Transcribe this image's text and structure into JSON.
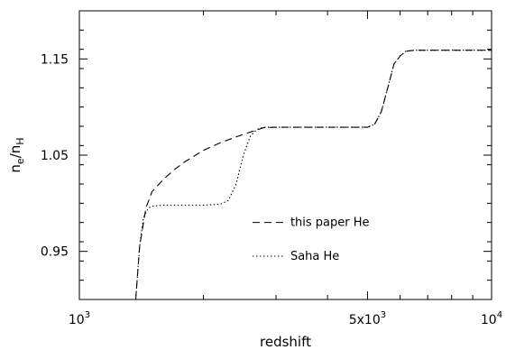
{
  "chart_data": {
    "type": "line",
    "xlabel": "redshift",
    "ylabel": {
      "base": "n",
      "sub1": "e",
      "slash": "/n",
      "sub2": "H"
    },
    "xscale": "log",
    "xlim": [
      1000,
      10000
    ],
    "ylim": [
      0.9,
      1.2
    ],
    "grid": false,
    "legend_position": "bottom-center",
    "x_ticks": [
      {
        "value": 1000,
        "base": "10",
        "exp": "3"
      },
      {
        "value": 5000,
        "base": "5x10",
        "exp": "3"
      },
      {
        "value": 10000,
        "base": "10",
        "exp": "4"
      }
    ],
    "x_minor_ticks": [
      2000,
      3000,
      4000,
      6000,
      7000,
      8000,
      9000
    ],
    "y_ticks": [
      {
        "value": 0.95,
        "label": "0.95"
      },
      {
        "value": 1.05,
        "label": "1.05"
      },
      {
        "value": 1.15,
        "label": "1.15"
      }
    ],
    "y_minor_ticks": [
      0.9,
      0.92,
      0.94,
      0.96,
      0.98,
      1.0,
      1.02,
      1.04,
      1.06,
      1.08,
      1.1,
      1.12,
      1.14,
      1.16,
      1.18,
      1.2
    ],
    "series": [
      {
        "name": "this paper He",
        "dash": "8,5",
        "x": [
          1370,
          1400,
          1450,
          1500,
          1600,
          1700,
          1800,
          2000,
          2200,
          2400,
          2600,
          2800,
          3000,
          3500,
          4000,
          4500,
          5000,
          5200,
          5400,
          5600,
          5800,
          6000,
          6200,
          6500,
          7000,
          8000,
          9000,
          10000
        ],
        "y": [
          0.9,
          0.955,
          0.995,
          1.012,
          1.025,
          1.035,
          1.043,
          1.055,
          1.063,
          1.069,
          1.074,
          1.0785,
          1.079,
          1.079,
          1.079,
          1.079,
          1.079,
          1.082,
          1.095,
          1.12,
          1.145,
          1.153,
          1.158,
          1.159,
          1.159,
          1.159,
          1.159,
          1.159
        ]
      },
      {
        "name": "Saha He",
        "dash": "1.5,2.5",
        "x": [
          1370,
          1400,
          1430,
          1470,
          1500,
          1600,
          1700,
          1800,
          2000,
          2200,
          2300,
          2400,
          2500,
          2600,
          2700,
          2800,
          3000,
          3500,
          4000,
          4500,
          5000,
          5200,
          5400,
          5600,
          5800,
          6000,
          6200,
          6500,
          7000,
          8000,
          9000,
          10000
        ],
        "y": [
          0.9,
          0.955,
          0.985,
          0.995,
          0.997,
          0.998,
          0.998,
          0.998,
          0.998,
          0.999,
          1.003,
          1.02,
          1.05,
          1.07,
          1.077,
          1.079,
          1.079,
          1.079,
          1.079,
          1.079,
          1.079,
          1.082,
          1.095,
          1.12,
          1.145,
          1.153,
          1.158,
          1.159,
          1.159,
          1.159,
          1.159,
          1.159
        ]
      }
    ]
  }
}
